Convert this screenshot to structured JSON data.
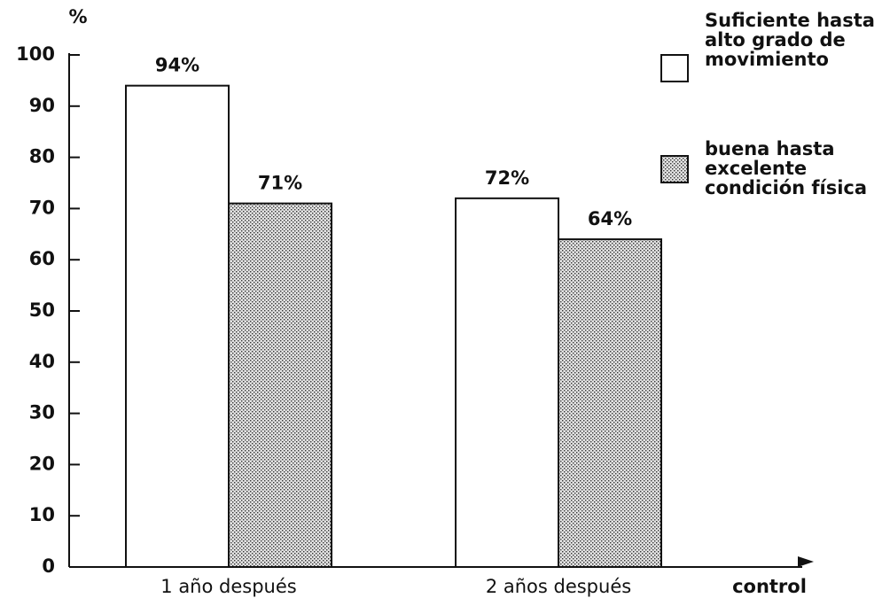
{
  "chart_data": {
    "type": "bar",
    "y_label": "%",
    "x_label": "control",
    "categories": [
      "1 año después",
      "2 años después"
    ],
    "series": [
      {
        "name": "Suficiente hasta alto grado de movimiento",
        "color": "#ffffff",
        "values": [
          94,
          72
        ],
        "value_labels": [
          "94%",
          "72%"
        ]
      },
      {
        "name": "buena hasta excelente condición física",
        "color": "#e2e2e2",
        "pattern": "dots",
        "values": [
          71,
          64
        ],
        "value_labels": [
          "71%",
          "64%"
        ]
      }
    ],
    "ylim": [
      0,
      100
    ],
    "yticks": [
      0,
      10,
      20,
      30,
      40,
      50,
      60,
      70,
      80,
      90,
      100
    ],
    "grid": false
  }
}
